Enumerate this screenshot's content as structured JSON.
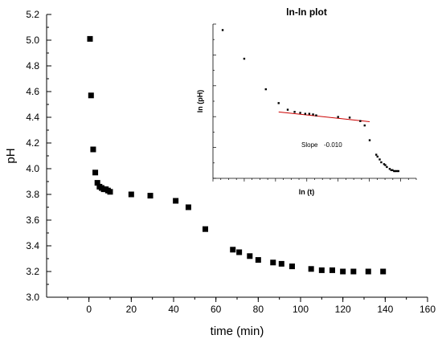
{
  "chart_data": [
    {
      "type": "scatter",
      "title": "",
      "xlabel": "time (min)",
      "ylabel": "pH",
      "xlim": [
        -20,
        160
      ],
      "ylim": [
        3.0,
        5.2
      ],
      "x_ticks": [
        "0",
        "20",
        "40",
        "60",
        "80",
        "100",
        "120",
        "140",
        "160"
      ],
      "y_ticks": [
        "3.0",
        "3.2",
        "3.4",
        "3.6",
        "3.8",
        "4.0",
        "4.2",
        "4.4",
        "4.6",
        "4.8",
        "5.0",
        "5.2"
      ],
      "grid": false,
      "legend": "none",
      "marker": "square",
      "marker_color": "#000000",
      "series": [
        {
          "x": [
            0.5,
            1,
            2,
            3,
            4,
            5,
            6,
            7,
            8,
            9,
            10,
            20,
            29,
            41,
            47,
            55,
            68,
            71,
            76,
            80,
            87,
            91,
            96,
            105,
            110,
            115,
            120,
            125,
            132,
            139
          ],
          "y": [
            5.01,
            4.57,
            4.15,
            3.97,
            3.89,
            3.86,
            3.85,
            3.84,
            3.84,
            3.83,
            3.82,
            3.8,
            3.79,
            3.75,
            3.7,
            3.53,
            3.37,
            3.35,
            3.32,
            3.29,
            3.27,
            3.26,
            3.24,
            3.22,
            3.21,
            3.21,
            3.2,
            3.2,
            3.2,
            3.2
          ]
        }
      ]
    },
    {
      "type": "scatter",
      "title": "ln-ln plot",
      "xlabel": "ln (t)",
      "ylabel": "ln (pH)",
      "xlim": [
        -1,
        5.5
      ],
      "ylim": [
        1.14,
        1.63
      ],
      "grid": false,
      "legend": "none",
      "marker": "dot",
      "marker_color": "#000000",
      "fit_line_color": "#cc0000",
      "annotation": {
        "label": "Slope",
        "value": "-0.010"
      },
      "series": [
        {
          "x": [
            -0.69,
            0.0,
            0.69,
            1.1,
            1.39,
            1.61,
            1.79,
            1.95,
            2.08,
            2.2,
            2.3,
            3.0,
            3.37,
            3.71,
            3.85,
            4.01,
            4.22,
            4.26,
            4.33,
            4.38,
            4.47,
            4.51,
            4.56,
            4.65,
            4.7,
            4.74,
            4.79,
            4.83,
            4.88,
            4.93
          ],
          "y": [
            1.611,
            1.52,
            1.423,
            1.379,
            1.358,
            1.351,
            1.348,
            1.345,
            1.345,
            1.343,
            1.34,
            1.335,
            1.333,
            1.322,
            1.308,
            1.261,
            1.215,
            1.209,
            1.2,
            1.191,
            1.185,
            1.182,
            1.176,
            1.17,
            1.166,
            1.166,
            1.163,
            1.163,
            1.163,
            1.163
          ]
        }
      ],
      "fit_line": {
        "x": [
          1.1,
          4.01
        ],
        "y": [
          1.351,
          1.32
        ]
      }
    }
  ]
}
